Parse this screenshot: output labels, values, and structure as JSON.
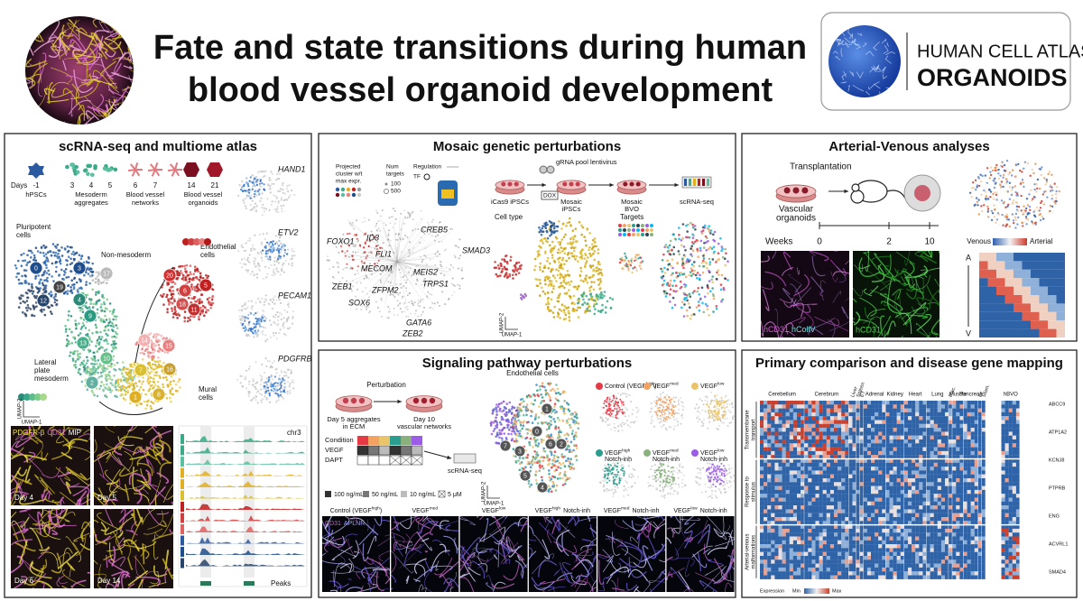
{
  "header": {
    "title": [
      "Fate and state transitions during human",
      "blood vessel organoid development"
    ],
    "logo": [
      "HUMAN CELL ATLAS",
      "ORGANOIDS"
    ]
  },
  "atlas": {
    "title": "scRNA-seq and multiome atlas",
    "days_label": "Days",
    "days": [
      "-1",
      "3",
      "4",
      "5",
      "6",
      "7",
      "14",
      "21"
    ],
    "stages": [
      [
        "hPSCs"
      ],
      [
        "Mesoderm",
        "aggregates"
      ],
      [
        "Blood vessel",
        "networks"
      ],
      [
        "Blood vessel",
        "organoids"
      ]
    ],
    "clusters": [
      "0",
      "3",
      "12",
      "19",
      "4",
      "17",
      "9",
      "13",
      "10",
      "2",
      "7",
      "1",
      "8",
      "16",
      "14",
      "15",
      "20",
      "5",
      "6",
      "18",
      "11"
    ],
    "populations": [
      [
        "Pluripotent",
        "cells"
      ],
      [
        "Non-mesoderm"
      ],
      [
        "Endothelial",
        "cells"
      ],
      [
        "Lateral",
        "plate",
        "mesoderm"
      ],
      [
        "Mural",
        "cells"
      ]
    ],
    "axes": [
      "UMAP-2",
      "UMAP-1"
    ],
    "genes": [
      "HAND1",
      "ETV2",
      "PECAM1",
      "PDGFRB"
    ],
    "stain": [
      "PDGFR-β",
      "CD31",
      "MIP"
    ],
    "images": [
      "Day 4",
      "Day 5",
      "Day 6",
      "Day 14"
    ],
    "track": "chr3",
    "peaks": "Peaks"
  },
  "mosaic": {
    "title": "Mosaic genetic perturbations",
    "legend": {
      "cluster": [
        "Projected",
        "cluster w/t",
        "max expr."
      ],
      "targets": [
        "Num",
        "targets"
      ],
      "sizes": [
        "100",
        "500"
      ],
      "regulation": "Regulation",
      "tf": "TF"
    },
    "genes": [
      "FOXO1",
      "ID3",
      "FLI1",
      "CREB5",
      "SMAD3",
      "MECOM",
      "MEIS2",
      "ZEB1",
      "ZFPM2",
      "TRPS1",
      "SOX6",
      "GATA6",
      "ZEB2"
    ],
    "workflow": {
      "virus": "gRNA pool lentivirus",
      "dox": "DOX",
      "steps": [
        [
          "iCas9 iPSCs"
        ],
        [
          "Mosaic",
          "iPSCs"
        ],
        [
          "Mosaic",
          "BVO"
        ],
        [
          "scRNA-seq"
        ]
      ]
    },
    "umaps": [
      "Cell type",
      "Targets"
    ],
    "axes": [
      "UMAP-2",
      "UMAP-1"
    ]
  },
  "av": {
    "title": "Arterial-Venous analyses",
    "transplant": "Transplantation",
    "organoids": [
      "Vascular",
      "organoids"
    ],
    "weeks_label": "Weeks",
    "weeks": [
      "0",
      "2",
      "10"
    ],
    "stains": [
      "hCD31",
      "hCollV",
      "hCD31"
    ],
    "scale": [
      "Venous",
      "Arterial"
    ],
    "axis": [
      "A",
      "V"
    ]
  },
  "signaling": {
    "title": "Signaling pathway perturbations",
    "perturbation": "Perturbation",
    "dishes": [
      [
        "Day 5 aggregates",
        "in ECM"
      ],
      [
        "Day 10",
        "vascular networks"
      ]
    ],
    "table": [
      "Condition",
      "VEGF",
      "DAPT"
    ],
    "seq": "scRNA-seq",
    "doses": [
      "100 ng/mL",
      "50 ng/mL",
      "10 ng/mL",
      "5 μM"
    ],
    "umap": "Endothelial cells",
    "clusters": [
      "1",
      "0",
      "6",
      "2",
      "3",
      "5",
      "4",
      "7"
    ],
    "axes": [
      "UMAP-2",
      "UMAP-1"
    ],
    "conditions": [
      {
        "pre": "Control (VEGF",
        "sup": "high",
        "post": ")"
      },
      {
        "pre": "VEGF",
        "sup": "med"
      },
      {
        "pre": "VEGF",
        "sup": "low"
      },
      {
        "pre": "VEGF",
        "sup": "high",
        "post": "Notch-inh"
      },
      {
        "pre": "VEGF",
        "sup": "med",
        "post": "Notch-inh"
      },
      {
        "pre": "VEGF",
        "sup": "low",
        "post": "Notch-inh"
      }
    ],
    "stain": [
      "CD31",
      "APLNR"
    ]
  },
  "disease": {
    "title": "Primary comparison and disease gene mapping",
    "tissues": [
      "Cerebellum",
      "Cerebrum",
      "Liver",
      "Spleen",
      "ET",
      "Adrenal",
      "Kidney",
      "Heart",
      "Lung",
      "Plac.",
      "Muscle",
      "Pancreas",
      "Int.",
      "Stom.",
      "hBVO"
    ],
    "groups": [
      [
        "Transmembrane",
        "transport"
      ],
      [
        "Response to",
        "stimulus"
      ],
      [
        "Arterial-venous",
        "malformations"
      ]
    ],
    "genes": [
      "ABCC9",
      "ATP1A2",
      "KCNJ8",
      "PTPRB",
      "ENG",
      "ACVRL1",
      "SMAD4"
    ],
    "legend": [
      "Expression",
      "Min",
      "Max"
    ]
  }
}
